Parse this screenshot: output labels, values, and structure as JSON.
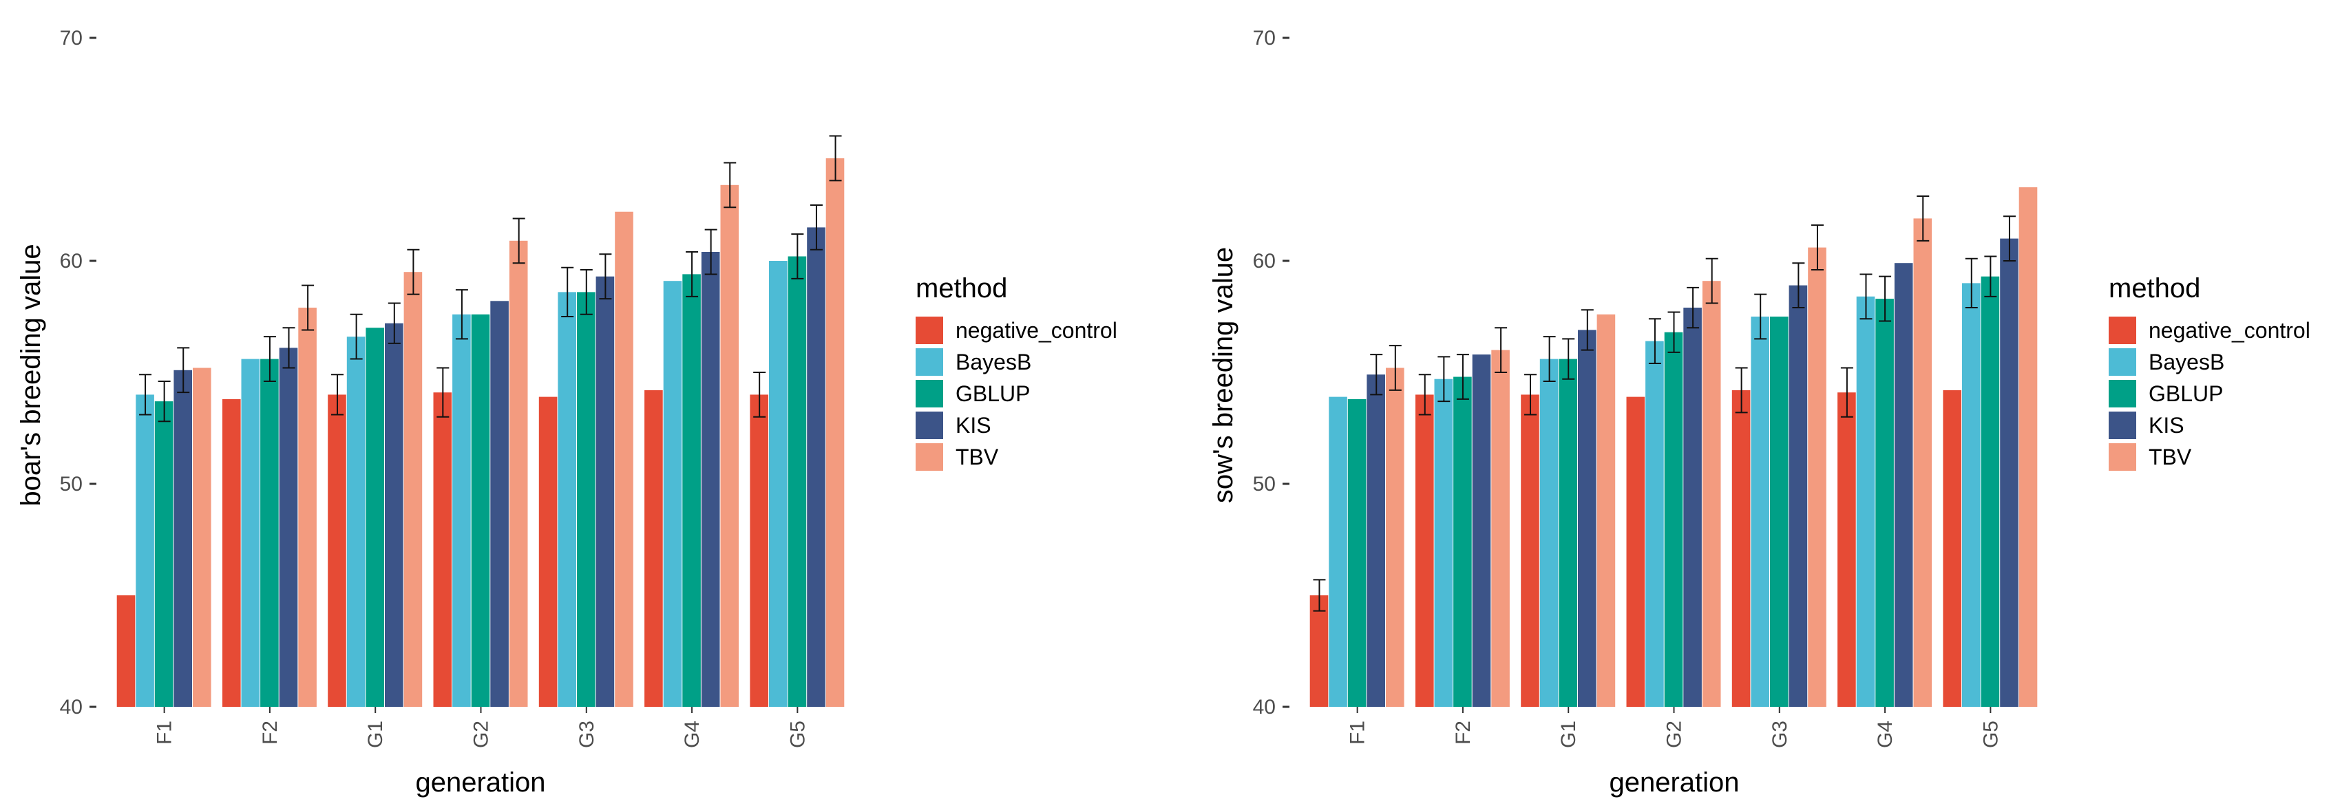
{
  "series_colors": {
    "negative_control": "#E64B35",
    "BayesB": "#4DBBD5",
    "GBLUP": "#00A087",
    "KIS": "#3C5488",
    "TBV": "#F39B7F"
  },
  "chart_data": [
    {
      "type": "bar",
      "panel": "left",
      "xlabel": "generation",
      "ylabel": "boar's breeding value",
      "ylim": [
        40,
        70
      ],
      "yticks": [
        40,
        50,
        60,
        70
      ],
      "grid": false,
      "legend_title": "method",
      "legend_position": "right",
      "categories": [
        "F1",
        "F2",
        "G1",
        "G2",
        "G3",
        "G4",
        "G5"
      ],
      "series": [
        {
          "name": "negative_control",
          "values": [
            45.0,
            53.8,
            54.0,
            54.1,
            53.9,
            54.2,
            54.0
          ],
          "err": [
            0.0,
            0.0,
            0.9,
            1.1,
            0.0,
            0.0,
            1.0
          ]
        },
        {
          "name": "BayesB",
          "values": [
            54.0,
            55.6,
            56.6,
            57.6,
            58.6,
            59.1,
            60.0
          ],
          "err": [
            0.9,
            0.0,
            1.0,
            1.1,
            1.1,
            0.0,
            0.0
          ]
        },
        {
          "name": "GBLUP",
          "values": [
            53.7,
            55.6,
            57.0,
            57.6,
            58.6,
            59.4,
            60.2
          ],
          "err": [
            0.9,
            1.0,
            0.0,
            0.0,
            1.0,
            1.0,
            1.0
          ]
        },
        {
          "name": "KIS",
          "values": [
            55.1,
            56.1,
            57.2,
            58.2,
            59.3,
            60.4,
            61.5
          ],
          "err": [
            1.0,
            0.9,
            0.9,
            0.0,
            1.0,
            1.0,
            1.0
          ]
        },
        {
          "name": "TBV",
          "values": [
            55.2,
            57.9,
            59.5,
            60.9,
            62.2,
            63.4,
            64.6
          ],
          "err": [
            0.0,
            1.0,
            1.0,
            1.0,
            0.0,
            1.0,
            1.0
          ]
        }
      ]
    },
    {
      "type": "bar",
      "panel": "right",
      "xlabel": "generation",
      "ylabel": "sow's breeding value",
      "ylim": [
        40,
        70
      ],
      "yticks": [
        40,
        50,
        60,
        70
      ],
      "grid": false,
      "legend_title": "method",
      "legend_position": "right",
      "categories": [
        "F1",
        "F2",
        "G1",
        "G2",
        "G3",
        "G4",
        "G5"
      ],
      "series": [
        {
          "name": "negative_control",
          "values": [
            45.0,
            54.0,
            54.0,
            53.9,
            54.2,
            54.1,
            54.2
          ],
          "err": [
            0.7,
            0.9,
            0.9,
            0.0,
            1.0,
            1.1,
            0.0
          ]
        },
        {
          "name": "BayesB",
          "values": [
            53.9,
            54.7,
            55.6,
            56.4,
            57.5,
            58.4,
            59.0
          ],
          "err": [
            0.0,
            1.0,
            1.0,
            1.0,
            1.0,
            1.0,
            1.1
          ]
        },
        {
          "name": "GBLUP",
          "values": [
            53.8,
            54.8,
            55.6,
            56.8,
            57.5,
            58.3,
            59.3
          ],
          "err": [
            0.0,
            1.0,
            0.9,
            0.9,
            0.0,
            1.0,
            0.9
          ]
        },
        {
          "name": "KIS",
          "values": [
            54.9,
            55.8,
            56.9,
            57.9,
            58.9,
            59.9,
            61.0
          ],
          "err": [
            0.9,
            0.0,
            0.9,
            0.9,
            1.0,
            0.0,
            1.0
          ]
        },
        {
          "name": "TBV",
          "values": [
            55.2,
            56.0,
            57.6,
            59.1,
            60.6,
            61.9,
            63.3
          ],
          "err": [
            1.0,
            1.0,
            0.0,
            1.0,
            1.0,
            1.0,
            0.0
          ]
        }
      ]
    }
  ]
}
